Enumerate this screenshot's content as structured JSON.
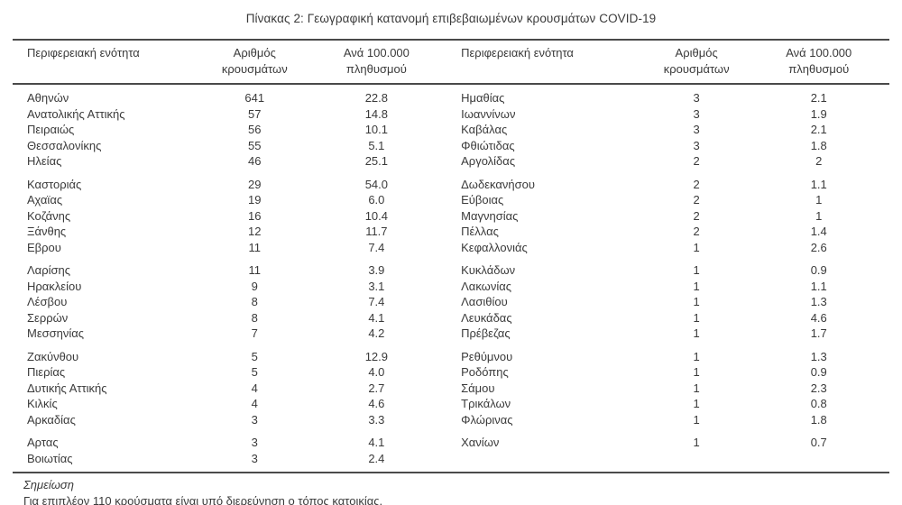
{
  "title": "Πίνακας 2: Γεωγραφική κατανομή επιβεβαιωμένων κρουσμάτων COVID-19",
  "table": {
    "headers": {
      "region_left": "Περιφερειακή ενότητα",
      "cases_left": [
        "Αριθμός",
        "κρουσμάτων"
      ],
      "per_100k_left": [
        "Ανά 100.000",
        "πληθυσμού"
      ],
      "region_right": "Περιφερειακή ενότητα",
      "cases_right": [
        "Αριθμός",
        "κρουσμάτων"
      ],
      "per_100k_right": [
        "Ανά 100.000",
        "πληθυσμού"
      ]
    },
    "groups": [
      {
        "rows": [
          [
            "Αθηνών",
            "641",
            "22.8",
            "Ημαθίας",
            "3",
            "2.1"
          ],
          [
            "Ανατολικής Αττικής",
            "57",
            "14.8",
            "Ιωαννίνων",
            "3",
            "1.9"
          ],
          [
            "Πειραιώς",
            "56",
            "10.1",
            "Καβάλας",
            "3",
            "2.1"
          ],
          [
            "Θεσσαλονίκης",
            "55",
            "5.1",
            "Φθιώτιδας",
            "3",
            "1.8"
          ],
          [
            "Ηλείας",
            "46",
            "25.1",
            "Αργολίδας",
            "2",
            "2"
          ]
        ]
      },
      {
        "rows": [
          [
            "Καστοριάς",
            "29",
            "54.0",
            "Δωδεκανήσου",
            "2",
            "1.1"
          ],
          [
            "Αχαϊας",
            "19",
            "6.0",
            "Εύβοιας",
            "2",
            "1"
          ],
          [
            "Κοζάνης",
            "16",
            "10.4",
            "Μαγνησίας",
            "2",
            "1"
          ],
          [
            "Ξάνθης",
            "12",
            "11.7",
            "Πέλλας",
            "2",
            "1.4"
          ],
          [
            "Εβρου",
            "11",
            "7.4",
            "Κεφαλλονιάς",
            "1",
            "2.6"
          ]
        ]
      },
      {
        "rows": [
          [
            "Λαρίσης",
            "11",
            "3.9",
            "Κυκλάδων",
            "1",
            "0.9"
          ],
          [
            "Ηρακλείου",
            "9",
            "3.1",
            "Λακωνίας",
            "1",
            "1.1"
          ],
          [
            "Λέσβου",
            "8",
            "7.4",
            "Λασιθίου",
            "1",
            "1.3"
          ],
          [
            "Σερρών",
            "8",
            "4.1",
            "Λευκάδας",
            "1",
            "4.6"
          ],
          [
            "Μεσσηνίας",
            "7",
            "4.2",
            "Πρέβεζας",
            "1",
            "1.7"
          ]
        ]
      },
      {
        "rows": [
          [
            "Ζακύνθου",
            "5",
            "12.9",
            "Ρεθύμνου",
            "1",
            "1.3"
          ],
          [
            "Πιερίας",
            "5",
            "4.0",
            "Ροδόπης",
            "1",
            "0.9"
          ],
          [
            "Δυτικής Αττικής",
            "4",
            "2.7",
            "Σάμου",
            "1",
            "2.3"
          ],
          [
            "Κιλκίς",
            "4",
            "4.6",
            "Τρικάλων",
            "1",
            "0.8"
          ],
          [
            "Αρκαδίας",
            "3",
            "3.3",
            "Φλώρινας",
            "1",
            "1.8"
          ]
        ]
      },
      {
        "rows": [
          [
            "Αρτας",
            "3",
            "4.1",
            "Χανίων",
            "1",
            "0.7"
          ],
          [
            "Βοιωτίας",
            "3",
            "2.4",
            "",
            "",
            ""
          ]
        ]
      }
    ]
  },
  "note": {
    "label": "Σημείωση",
    "text": "Για επιπλέον 110 κρούσματα είναι υπό διερεύνηση ο τόπος κατοικίας."
  },
  "colors": {
    "text": "#3a3a3a",
    "rule": "#4a4a4a",
    "background": "#ffffff"
  }
}
